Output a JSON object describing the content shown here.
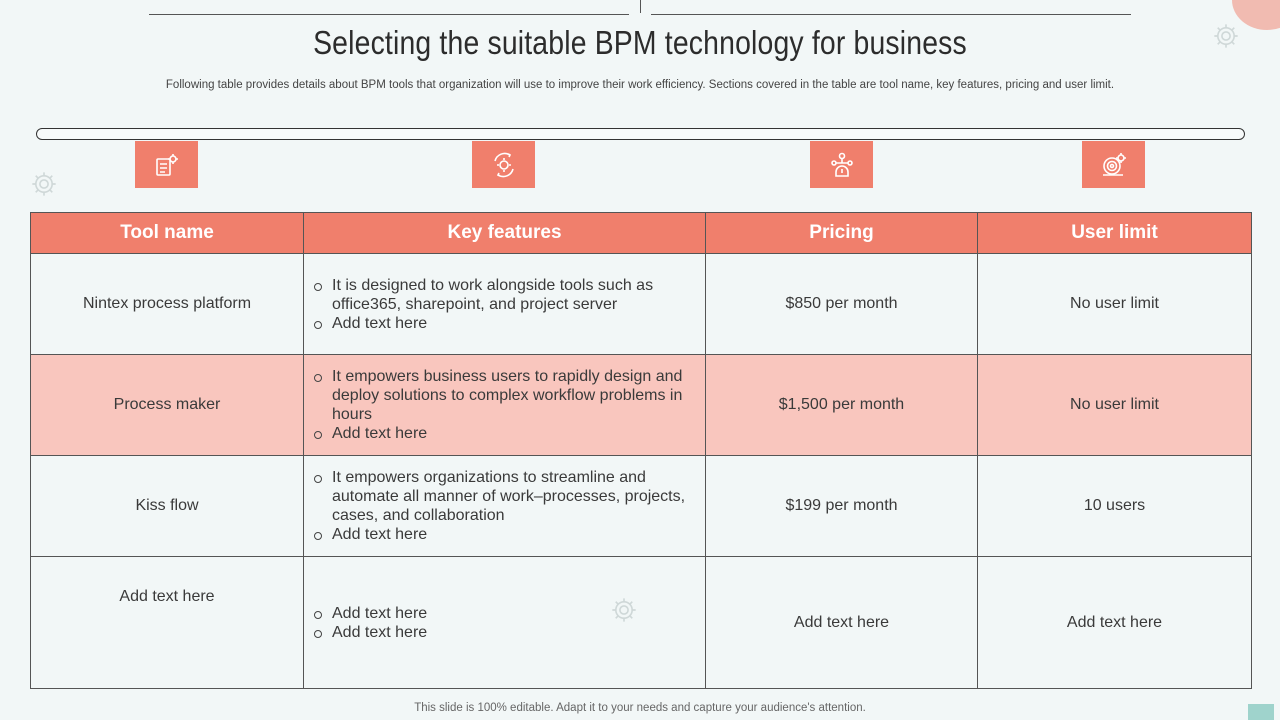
{
  "slide": {
    "title": "Selecting the suitable BPM technology for business",
    "subtitle": "Following table provides details about BPM tools that organization will use to improve their work efficiency. Sections covered in the table are tool name, key features, pricing and user limit.",
    "footer": "This slide is 100% editable. Adapt it to your needs and capture your audience's attention."
  },
  "icons": [
    "document-gear-icon",
    "cycle-gear-icon",
    "network-hierarchy-icon",
    "target-gear-icon"
  ],
  "colors": {
    "accent": "#f07f6c",
    "alt_row": "#f9c6be",
    "background": "#f2f7f7"
  },
  "table": {
    "headers": [
      "Tool name",
      "Key features",
      "Pricing",
      "User limit"
    ],
    "rows": [
      {
        "tool": "Nintex process platform",
        "features": [
          "It is designed to work alongside tools such as office365, sharepoint, and project server",
          "Add text here"
        ],
        "pricing": "$850 per month",
        "user_limit": "No user limit"
      },
      {
        "tool": "Process maker",
        "features": [
          "It empowers business users to rapidly design and deploy solutions to complex workflow problems in hours",
          "Add text here"
        ],
        "pricing": "$1,500 per month",
        "user_limit": "No user limit"
      },
      {
        "tool": "Kiss flow",
        "features": [
          "It empowers organizations to streamline and automate all manner of work–processes, projects, cases, and collaboration",
          "Add text here"
        ],
        "pricing": "$199 per month",
        "user_limit": "10 users"
      },
      {
        "tool": "Add text here",
        "features": [
          "Add text here",
          "Add text here"
        ],
        "pricing": "Add text here",
        "user_limit": "Add text here"
      }
    ]
  }
}
